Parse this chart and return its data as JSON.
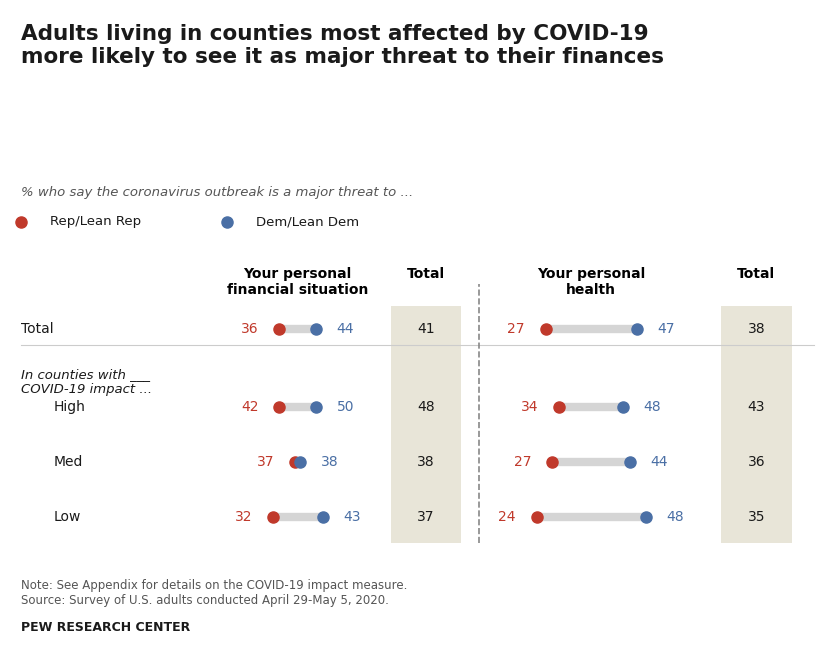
{
  "title": "Adults living in counties most affected by COVID-19\nmore likely to see it as major threat to their finances",
  "subtitle": "% who say the coronavirus outbreak is a major threat to ...",
  "legend": [
    {
      "label": "Rep/Lean Rep",
      "color": "#c0392b"
    },
    {
      "label": "Dem/Lean Dem",
      "color": "#4a6fa5"
    }
  ],
  "col1_header": "Your personal\nfinancial situation",
  "col2_header": "Your personal\nhealth",
  "total_label": "Total",
  "rows": [
    {
      "label": "Total",
      "fin_rep": 36,
      "fin_dem": 44,
      "fin_total": 41,
      "hlth_rep": 27,
      "hlth_dem": 47,
      "hlth_total": 38
    },
    {
      "label": "High",
      "fin_rep": 42,
      "fin_dem": 50,
      "fin_total": 48,
      "hlth_rep": 34,
      "hlth_dem": 48,
      "hlth_total": 43
    },
    {
      "label": "Med",
      "fin_rep": 37,
      "fin_dem": 38,
      "fin_total": 38,
      "hlth_rep": 27,
      "hlth_dem": 44,
      "hlth_total": 36
    },
    {
      "label": "Low",
      "fin_rep": 32,
      "fin_dem": 43,
      "fin_total": 37,
      "hlth_rep": 24,
      "hlth_dem": 48,
      "hlth_total": 35
    }
  ],
  "county_header": "In counties with ___\nCOVID-19 impact ...",
  "note": "Note: See Appendix for details on the COVID-19 impact measure.\nSource: Survey of U.S. adults conducted April 29-May 5, 2020.",
  "source_label": "PEW RESEARCH CENTER",
  "rep_color": "#c0392b",
  "dem_color": "#4a6fa5",
  "bar_color": "#d5d5d5",
  "total_bg": "#e8e5d8",
  "background": "#ffffff"
}
